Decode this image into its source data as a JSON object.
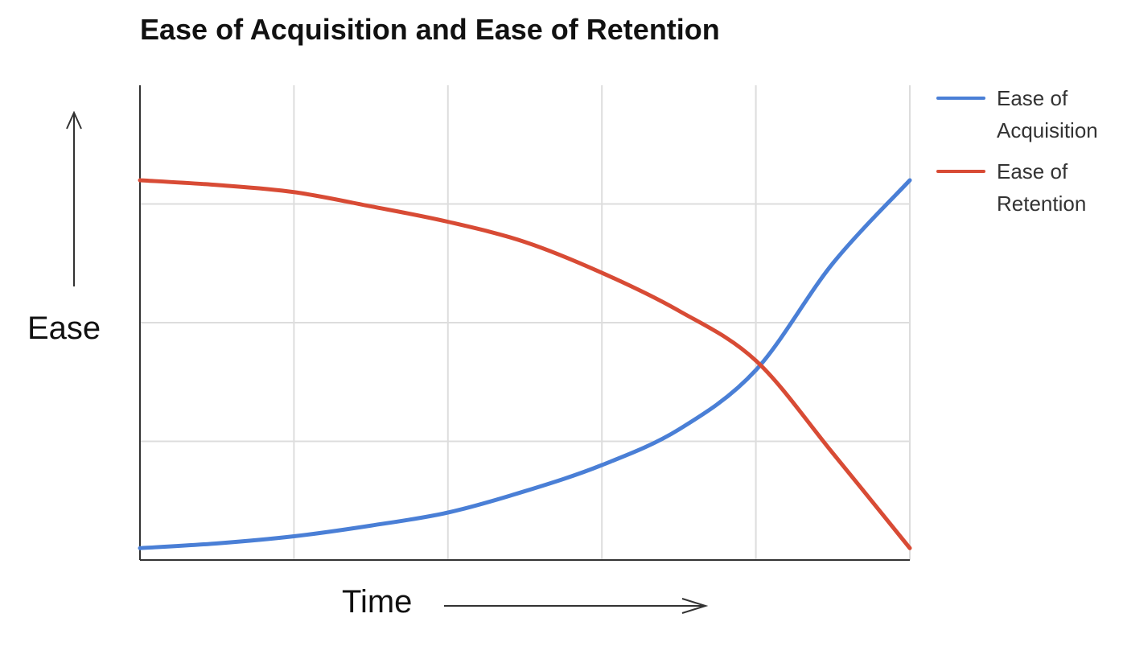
{
  "chart_data": {
    "type": "line",
    "title": "Ease of Acquisition and Ease of Retention",
    "xlabel": "Time",
    "ylabel": "Ease",
    "x": [
      0,
      0.5,
      1,
      1.5,
      2,
      2.5,
      3,
      3.5,
      4,
      4.5,
      5
    ],
    "xlim": [
      0,
      5
    ],
    "ylim": [
      0,
      4
    ],
    "grid": true,
    "legend_position": "right",
    "series": [
      {
        "name": "Ease of Acquisition",
        "color": "#4a7fd6",
        "values": [
          0.1,
          0.14,
          0.2,
          0.29,
          0.4,
          0.58,
          0.8,
          1.1,
          1.6,
          2.5,
          3.2
        ]
      },
      {
        "name": "Ease of Retention",
        "color": "#d84b35",
        "values": [
          3.2,
          3.16,
          3.1,
          2.98,
          2.85,
          2.68,
          2.42,
          2.1,
          1.68,
          0.9,
          0.1
        ]
      }
    ]
  }
}
